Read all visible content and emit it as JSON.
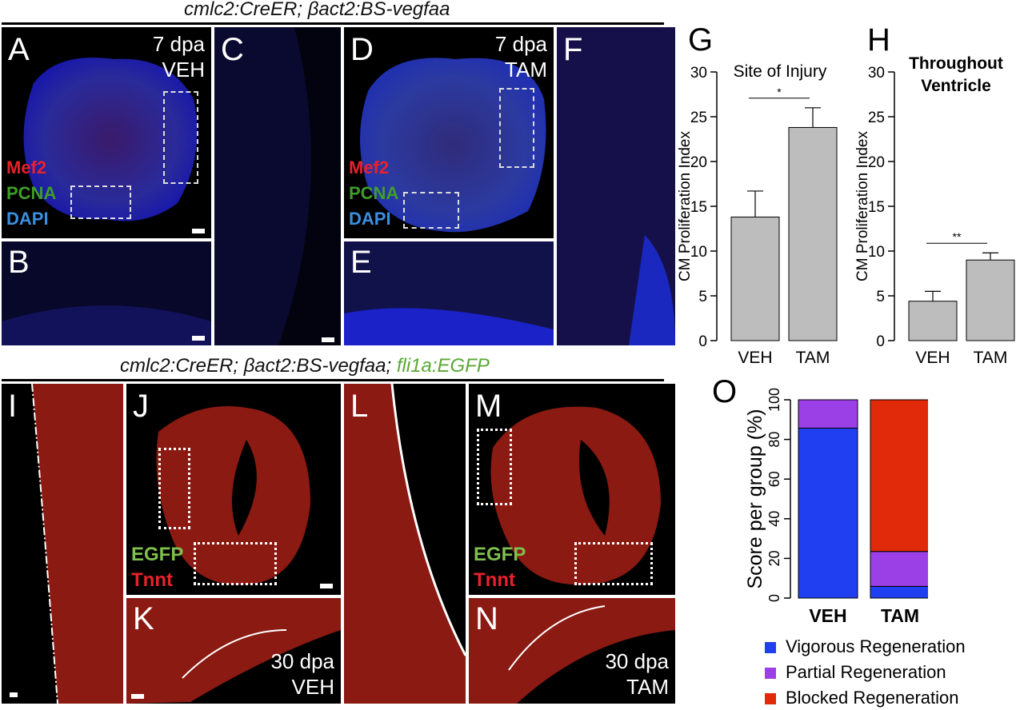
{
  "headers": {
    "top": "cmlc2:CreER; βact2:BS-vegfaa",
    "bottom_black": "cmlc2:CreER; βact2:BS-vegfaa;",
    "bottom_green": "fli1a:EGFP"
  },
  "panels": {
    "A": {
      "label": "A",
      "time": "7 dpa",
      "cond": "VEH"
    },
    "B": {
      "label": "B"
    },
    "C": {
      "label": "C"
    },
    "D": {
      "label": "D",
      "time": "7 dpa",
      "cond": "TAM"
    },
    "E": {
      "label": "E"
    },
    "F": {
      "label": "F"
    },
    "I": {
      "label": "I"
    },
    "J": {
      "label": "J"
    },
    "K": {
      "label": "K",
      "time": "30 dpa",
      "cond": "VEH"
    },
    "L": {
      "label": "L"
    },
    "M": {
      "label": "M"
    },
    "N": {
      "label": "N",
      "time": "30 dpa",
      "cond": "TAM"
    }
  },
  "channels_top": {
    "mef2": "Mef2",
    "pcna": "PCNA",
    "dapi": "DAPI"
  },
  "channels_bottom": {
    "egfp": "EGFP",
    "tnnt": "Tnnt"
  },
  "colors": {
    "mef2": "#e8212b",
    "pcna": "#3f9e2a",
    "dapi": "#3b8fe0",
    "egfp": "#7fbf4d",
    "tnnt": "#e8212b"
  },
  "chart_data": [
    {
      "panel": "G",
      "type": "bar",
      "title": "Site of Injury",
      "ylabel": "CM Proliferation Index",
      "categories": [
        "VEH",
        "TAM"
      ],
      "values": [
        13.8,
        23.8
      ],
      "errors": [
        2.9,
        2.2
      ],
      "ylim": [
        0,
        30
      ],
      "yticks": [
        0,
        5,
        10,
        15,
        20,
        25,
        30
      ],
      "significance": "*"
    },
    {
      "panel": "H",
      "type": "bar",
      "title": "Throughout Ventricle",
      "ylabel": "CM Proliferation Index",
      "categories": [
        "VEH",
        "TAM"
      ],
      "values": [
        4.4,
        9.0
      ],
      "errors": [
        1.1,
        0.8
      ],
      "ylim": [
        0,
        30
      ],
      "yticks": [
        0,
        5,
        10,
        15,
        20,
        25,
        30
      ],
      "significance": "**"
    },
    {
      "panel": "O",
      "type": "bar",
      "stacked": true,
      "ylabel": "Score per group (%)",
      "categories": [
        "VEH",
        "TAM"
      ],
      "ylim": [
        0,
        100
      ],
      "yticks": [
        0,
        20,
        40,
        60,
        80,
        100
      ],
      "series": [
        {
          "name": "Vigorous Regeneration",
          "color": "#1f3ff0",
          "values": [
            85.7,
            5.9
          ]
        },
        {
          "name": "Partial Regeneration",
          "color": "#9b3fe6",
          "values": [
            14.3,
            17.6
          ]
        },
        {
          "name": "Blocked Regeneration",
          "color": "#e02a0a",
          "values": [
            0,
            76.5
          ]
        }
      ]
    }
  ]
}
